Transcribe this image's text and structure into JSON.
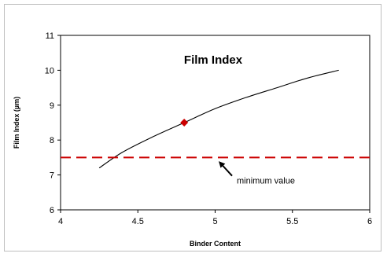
{
  "chart_data": {
    "type": "line",
    "title": "Film Index",
    "xlabel": "Binder Content",
    "ylabel": "Film Index (µm)",
    "xlim": [
      4,
      6
    ],
    "ylim": [
      6,
      11
    ],
    "x_ticks": [
      "4",
      "4.5",
      "5",
      "5.5",
      "6"
    ],
    "y_ticks": [
      "6",
      "7",
      "8",
      "9",
      "10",
      "11"
    ],
    "grid": false,
    "series": [
      {
        "x": [
          4.25,
          4.4,
          4.6,
          4.8,
          5.0,
          5.2,
          5.4,
          5.6,
          5.8
        ],
        "values": [
          7.2,
          7.65,
          8.1,
          8.5,
          8.9,
          9.22,
          9.5,
          9.78,
          10.0
        ],
        "color": "#000000"
      }
    ],
    "marker": {
      "x": 4.8,
      "y": 8.5,
      "color": "#cc0000",
      "shape": "diamond"
    },
    "threshold": {
      "y": 7.5,
      "color": "#cc0000",
      "style": "dashed"
    },
    "annotation": {
      "text": "minimum value",
      "arrow_to_x": 5.03,
      "arrow_to_y": 7.36,
      "text_x": 5.14,
      "text_y": 6.84
    }
  }
}
